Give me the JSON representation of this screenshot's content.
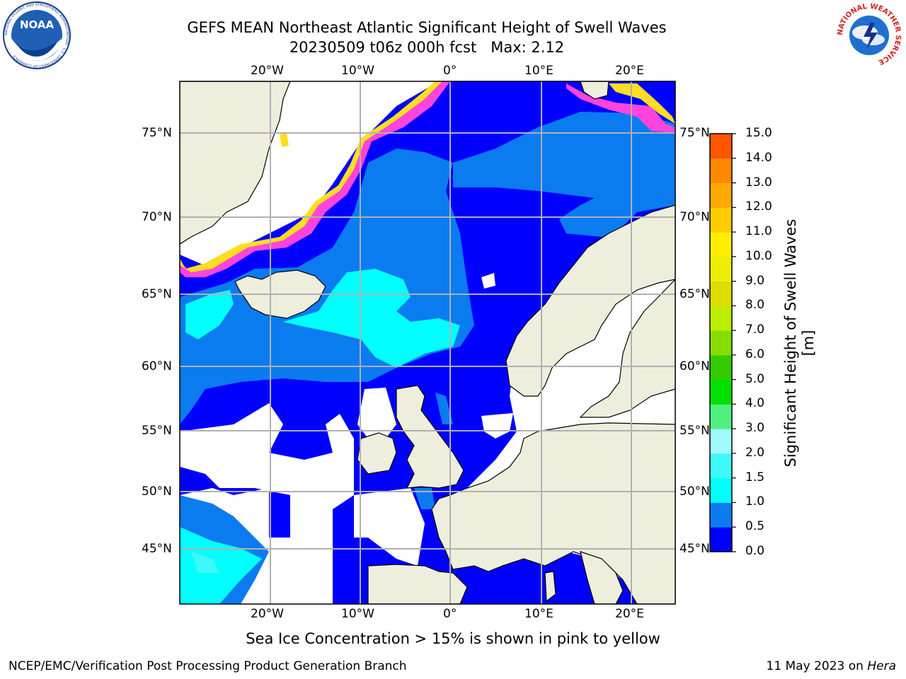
{
  "header": {
    "title": "GEFS MEAN Northeast Atlantic Significant Height of Swell Waves",
    "subtitle": "20230509 t06z 000h fcst   Max: 2.12"
  },
  "logos": {
    "noaa_text": "NOAA",
    "noaa_ring": "NATIONAL OCEANIC AND ATMOSPHERIC ADMINISTRATION · U.S. DEPARTMENT OF COMMERCE",
    "nws_ring": "NATIONAL WEATHER SERVICE"
  },
  "map": {
    "lon_labels_top": [
      "20°W",
      "10°W",
      "0°",
      "10°E",
      "20°E"
    ],
    "lon_labels_bottom": [
      "20°W",
      "10°W",
      "0°",
      "10°E",
      "20°E"
    ],
    "lat_labels_left": [
      "75°N",
      "70°N",
      "65°N",
      "60°N",
      "55°N",
      "50°N",
      "45°N"
    ],
    "lat_labels_right": [
      "75°N",
      "70°N",
      "65°N",
      "60°N",
      "55°N",
      "50°N",
      "45°N"
    ],
    "colors": {
      "land": "#eeeedd",
      "grid": "#b0b0b0",
      "band_0_05": "#0000ff",
      "band_05_10": "#0b7bf0",
      "band_10_15": "#00ffff",
      "band_15_20": "#3ff8f8",
      "ice_pink": "#ff44dd",
      "ice_yellow": "#ffdd22"
    }
  },
  "colorbar": {
    "label": "Significant Height of Swell Waves [m]",
    "ticks": [
      "15.0",
      "14.0",
      "13.0",
      "12.0",
      "11.0",
      "10.0",
      "9.0",
      "8.0",
      "7.0",
      "6.0",
      "5.0",
      "4.0",
      "3.0",
      "2.0",
      "1.5",
      "1.0",
      "0.5",
      "0.0"
    ],
    "colors": [
      "#0000ff",
      "#0b7bf0",
      "#00ffff",
      "#3ff8f8",
      "#a0fbfb",
      "#50f080",
      "#00e000",
      "#33cc00",
      "#88dd00",
      "#bbee00",
      "#dddd00",
      "#eeee00",
      "#ffee00",
      "#ffcc00",
      "#ffaa00",
      "#ff8800",
      "#ff5500",
      "#ff2200",
      "#ff0000"
    ]
  },
  "caption": "Sea Ice Concentration > 15% is shown in pink to yellow",
  "footer": {
    "left": "NCEP/EMC/Verification Post Processing Product Generation Branch",
    "right_date": "11 May 2023 on ",
    "right_host": "Hera"
  }
}
